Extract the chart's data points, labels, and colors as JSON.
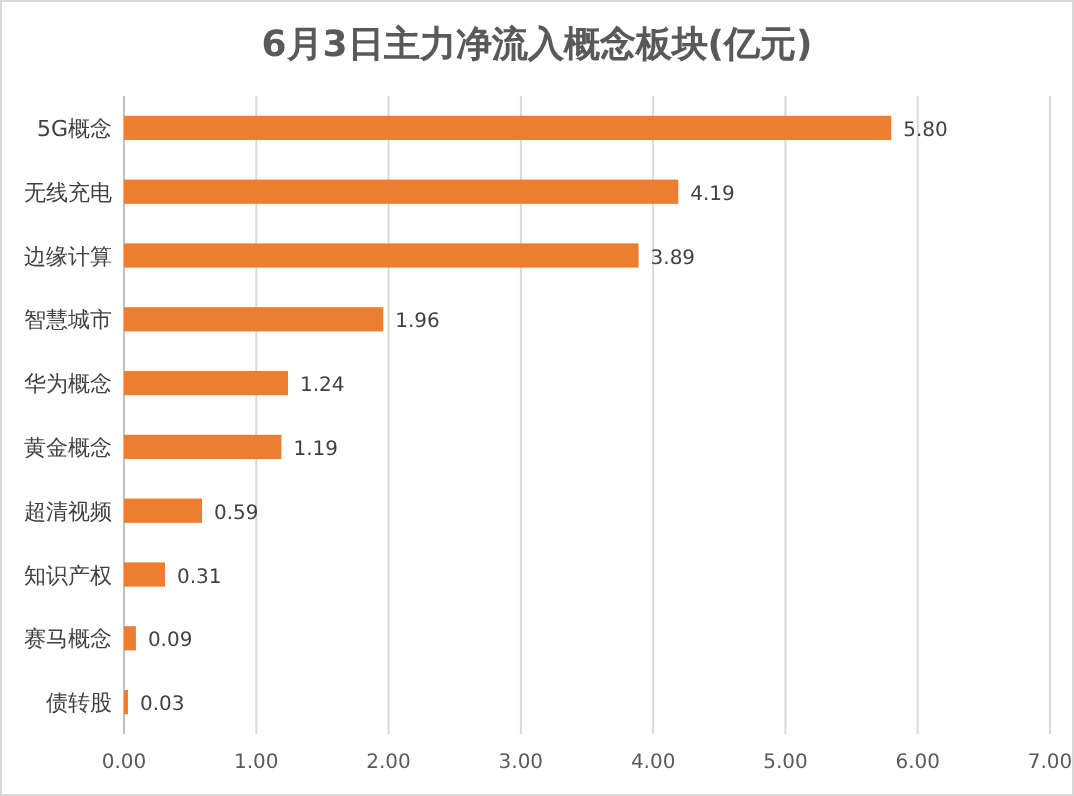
{
  "chart_data": {
    "type": "bar",
    "orientation": "horizontal",
    "title": "6月3日主力净流入概念板块(亿元)",
    "categories": [
      "5G概念",
      "无线充电",
      "边缘计算",
      "智慧城市",
      "华为概念",
      "黄金概念",
      "超清视频",
      "知识产权",
      "赛马概念",
      "债转股"
    ],
    "values": [
      5.8,
      4.19,
      3.89,
      1.96,
      1.24,
      1.19,
      0.59,
      0.31,
      0.09,
      0.03
    ],
    "color": "#ed7d31",
    "xlim": [
      0,
      7
    ],
    "xticks": [
      {
        "value": 0,
        "label": "0.00"
      },
      {
        "value": 1,
        "label": "1.00"
      },
      {
        "value": 2,
        "label": "2.00"
      },
      {
        "value": 3,
        "label": "3.00"
      },
      {
        "value": 4,
        "label": "4.00"
      },
      {
        "value": 5,
        "label": "5.00"
      },
      {
        "value": 6,
        "label": "6.00"
      },
      {
        "value": 7,
        "label": "7.00"
      }
    ],
    "value_labels": [
      "5.80",
      "4.19",
      "3.89",
      "1.96",
      "1.24",
      "1.19",
      "0.59",
      "0.31",
      "0.09",
      "0.03"
    ],
    "grid": "x"
  }
}
